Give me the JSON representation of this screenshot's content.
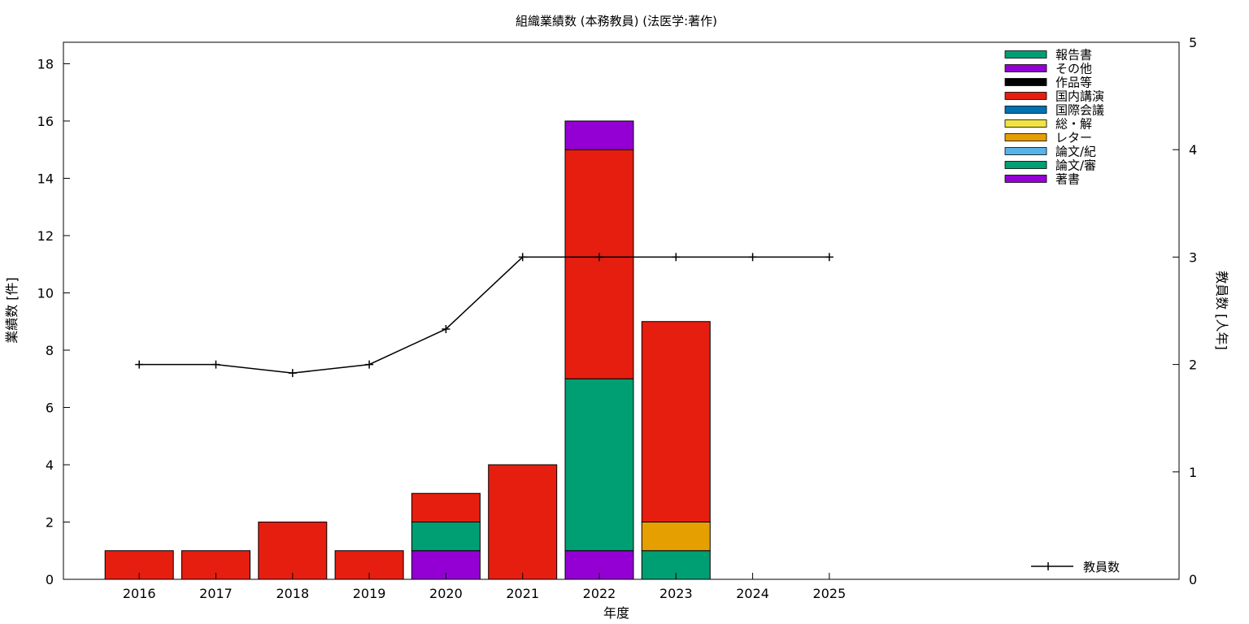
{
  "chart_data": {
    "type": "bar",
    "title": "組織業績数 (本務教員) (法医学:著作)",
    "xlabel": "年度",
    "ylabel": "業績数 [件]",
    "y2label": "教員数 [人年]",
    "ylim": [
      0,
      18.75
    ],
    "y2lim": [
      0,
      5
    ],
    "yticks": [
      0,
      2,
      4,
      6,
      8,
      10,
      12,
      14,
      16,
      18
    ],
    "y2ticks": [
      0,
      1,
      2,
      3,
      4,
      5
    ],
    "categories": [
      "2016",
      "2017",
      "2018",
      "2019",
      "2020",
      "2021",
      "2022",
      "2023",
      "2024",
      "2025"
    ],
    "stack_series": [
      {
        "name": "著書",
        "color": "#9400d3",
        "values": [
          0,
          0,
          0,
          0,
          1,
          0,
          1,
          0,
          0,
          0
        ]
      },
      {
        "name": "論文/審",
        "color": "#009e73",
        "values": [
          0,
          0,
          0,
          0,
          1,
          0,
          6,
          1,
          0,
          0
        ]
      },
      {
        "name": "論文/紀",
        "color": "#56b4e9",
        "values": [
          0,
          0,
          0,
          0,
          0,
          0,
          0,
          0,
          0,
          0
        ]
      },
      {
        "name": "レター",
        "color": "#e69f00",
        "values": [
          0,
          0,
          0,
          0,
          0,
          0,
          0,
          1,
          0,
          0
        ]
      },
      {
        "name": "総・解",
        "color": "#f0e442",
        "values": [
          0,
          0,
          0,
          0,
          0,
          0,
          0,
          0,
          0,
          0
        ]
      },
      {
        "name": "国際会議",
        "color": "#0072b2",
        "values": [
          0,
          0,
          0,
          0,
          0,
          0,
          0,
          0,
          0,
          0
        ]
      },
      {
        "name": "国内講演",
        "color": "#e51e10",
        "values": [
          1,
          1,
          2,
          1,
          1,
          4,
          8,
          7,
          0,
          0
        ]
      },
      {
        "name": "作品等",
        "color": "#000000",
        "values": [
          0,
          0,
          0,
          0,
          0,
          0,
          0,
          0,
          0,
          0
        ]
      },
      {
        "name": "その他",
        "color": "#9400d3",
        "values": [
          0,
          0,
          0,
          0,
          0,
          0,
          1,
          0,
          0,
          0
        ]
      },
      {
        "name": "報告書",
        "color": "#009e73",
        "values": [
          0,
          0,
          0,
          0,
          0,
          0,
          0,
          0,
          0,
          0
        ]
      }
    ],
    "line_series": {
      "name": "教員数",
      "color": "#000000",
      "values": [
        2,
        2,
        1.92,
        2,
        2.33,
        3,
        3,
        3,
        3,
        3
      ]
    },
    "legend_placement": "top-right",
    "grid": false
  }
}
